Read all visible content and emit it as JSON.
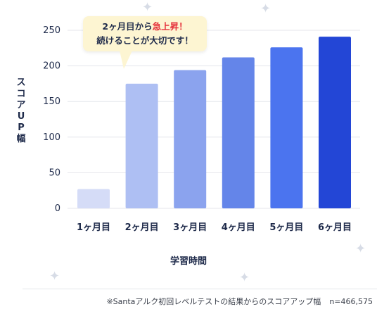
{
  "chart_data": {
    "type": "bar",
    "categories": [
      "1ヶ月目",
      "2ヶ月目",
      "3ヶ月目",
      "4ヶ月目",
      "5ヶ月目",
      "6ヶ月目"
    ],
    "values": [
      27,
      175,
      194,
      212,
      226,
      241
    ],
    "ylabel": "スコアUP幅",
    "xlabel": "学習時間",
    "ylim": [
      0,
      250
    ],
    "yticks": [
      0,
      50,
      100,
      150,
      200,
      250
    ],
    "grid": true,
    "bar_colors": [
      "#d5dcf7",
      "#aebff3",
      "#8ba3ee",
      "#6485e9",
      "#4b74ef",
      "#2346d6"
    ]
  },
  "callout": {
    "line1_prefix": "2ヶ月目から",
    "line1_highlight": "急上昇！",
    "line2": "続けることが大切です！"
  },
  "footnote": {
    "text": "※Santaアルク初回レベルテストの結果からのスコアアップ幅",
    "n": "n=466,575"
  },
  "colors": {
    "axis_text": "#1e2a4a",
    "grid": "#e4e6eb",
    "callout_bg": "#fdf5d2",
    "highlight": "#e5313b"
  }
}
